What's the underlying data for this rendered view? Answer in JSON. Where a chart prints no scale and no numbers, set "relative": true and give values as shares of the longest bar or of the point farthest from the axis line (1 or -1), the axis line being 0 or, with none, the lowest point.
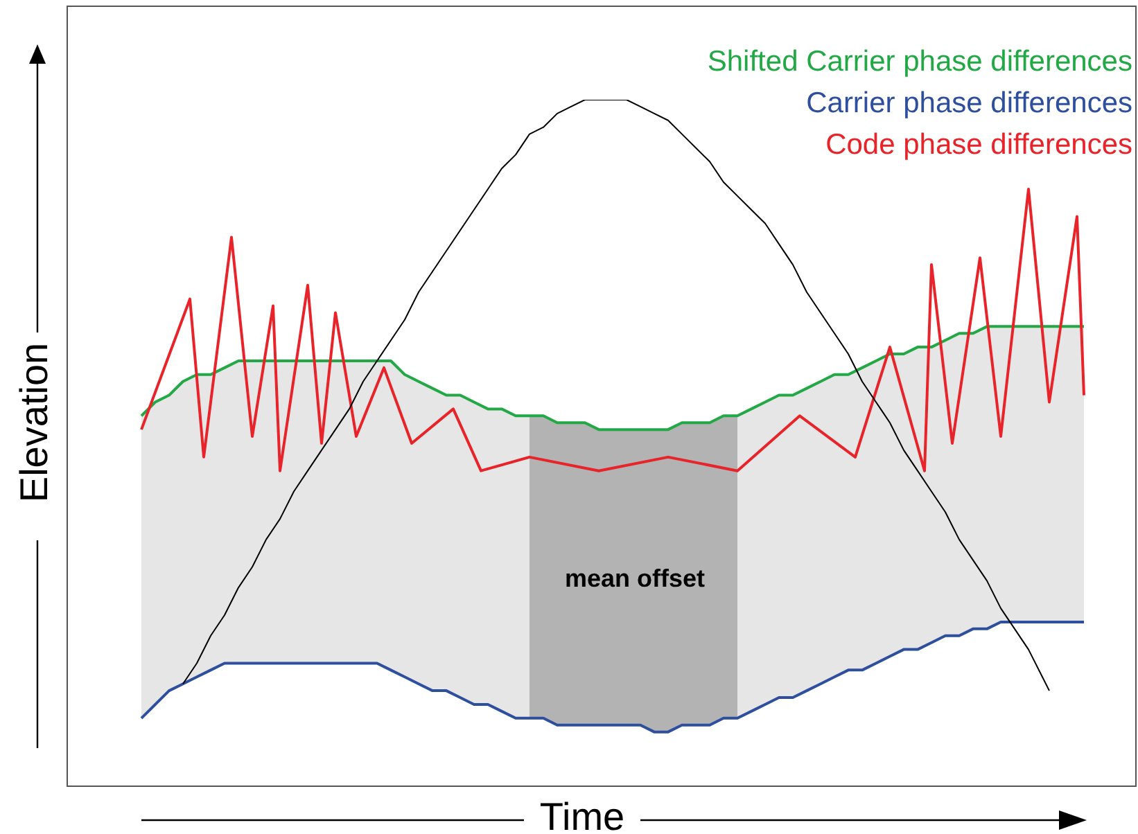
{
  "chart_data": {
    "type": "line",
    "relative": true,
    "xlabel": "Time",
    "ylabel": "Elevation",
    "legend": "top right",
    "marker": "none",
    "grid": false,
    "categories": [
      null,
      null,
      null,
      null,
      null,
      null,
      null,
      null,
      null,
      null,
      null,
      null,
      null,
      null,
      null,
      null,
      null,
      null,
      null,
      null,
      null,
      null,
      null,
      null,
      null,
      null,
      null,
      null,
      null,
      null,
      null,
      null,
      null,
      null,
      null,
      null,
      null,
      null,
      null,
      null,
      null,
      null,
      null,
      null,
      null,
      null,
      null,
      null,
      null,
      null,
      null,
      null,
      null,
      null,
      null,
      null,
      null,
      null,
      null,
      null,
      null,
      null,
      null,
      null,
      null,
      null,
      null,
      null,
      null,
      null,
      null,
      null,
      null,
      null,
      null,
      null,
      null,
      null,
      null,
      null,
      null,
      null,
      null,
      null,
      null,
      null,
      null,
      null,
      null,
      null,
      null,
      null,
      null,
      null,
      null,
      null,
      null,
      null,
      null,
      null,
      null,
      null,
      null,
      null,
      null,
      null,
      null,
      null,
      null,
      null,
      null,
      null,
      null,
      null,
      null,
      null,
      null,
      null,
      null,
      null,
      null,
      null,
      null,
      null,
      null,
      null,
      null,
      null,
      null,
      null,
      null,
      null,
      null,
      null,
      null,
      null,
      null
    ],
    "series": [
      {
        "name": "Shifted Carrier phase differences",
        "color": "#22a845",
        "values": [
          0.54,
          null,
          0.56,
          null,
          0.57,
          null,
          0.59,
          null,
          0.6,
          null,
          0.6,
          null,
          0.61,
          null,
          0.62,
          null,
          0.62,
          null,
          0.62,
          null,
          0.62,
          null,
          0.62,
          null,
          0.62,
          null,
          0.62,
          null,
          0.62,
          null,
          0.62,
          null,
          0.62,
          null,
          0.62,
          null,
          0.62,
          null,
          0.6,
          null,
          0.59,
          null,
          0.58,
          null,
          0.57,
          null,
          0.57,
          null,
          0.56,
          null,
          0.55,
          null,
          0.55,
          null,
          0.54,
          null,
          0.54,
          null,
          0.54,
          null,
          0.53,
          null,
          0.53,
          null,
          0.53,
          null,
          0.52,
          null,
          0.52,
          null,
          0.52,
          null,
          0.52,
          null,
          0.52,
          null,
          0.52,
          null,
          0.53,
          null,
          0.53,
          null,
          0.53,
          null,
          0.54,
          null,
          0.54,
          null,
          0.55,
          null,
          0.56,
          null,
          0.57,
          null,
          0.57,
          null,
          0.58,
          null,
          0.59,
          null,
          0.6,
          null,
          0.6,
          null,
          0.61,
          null,
          0.62,
          null,
          0.63,
          null,
          0.63,
          null,
          0.64,
          null,
          0.64,
          null,
          0.65,
          null,
          0.66,
          null,
          0.66,
          null,
          0.67,
          null,
          0.67,
          null,
          0.67,
          null,
          0.67,
          null,
          0.67,
          null,
          0.67,
          null,
          0.67,
          null,
          0.67
        ]
      },
      {
        "name": "Carrier phase differences",
        "color": "#2e4e9e",
        "values": [
          0.1,
          null,
          0.12,
          null,
          0.14,
          null,
          0.15,
          null,
          0.16,
          null,
          0.17,
          null,
          0.18,
          null,
          0.18,
          null,
          0.18,
          null,
          0.18,
          null,
          0.18,
          null,
          0.18,
          null,
          0.18,
          null,
          0.18,
          null,
          0.18,
          null,
          0.18,
          null,
          0.18,
          null,
          0.18,
          null,
          0.17,
          null,
          0.16,
          null,
          0.15,
          null,
          0.14,
          null,
          0.14,
          null,
          0.13,
          null,
          0.12,
          null,
          0.12,
          null,
          0.11,
          null,
          0.1,
          null,
          0.1,
          null,
          0.1,
          null,
          0.09,
          null,
          0.09,
          null,
          0.09,
          null,
          0.09,
          null,
          0.09,
          null,
          0.09,
          null,
          0.09,
          null,
          0.08,
          null,
          0.08,
          null,
          0.09,
          null,
          0.09,
          null,
          0.09,
          null,
          0.1,
          null,
          0.1,
          null,
          0.11,
          null,
          0.12,
          null,
          0.13,
          null,
          0.13,
          null,
          0.14,
          null,
          0.15,
          null,
          0.16,
          null,
          0.17,
          null,
          0.17,
          null,
          0.18,
          null,
          0.19,
          null,
          0.2,
          null,
          0.2,
          null,
          0.21,
          null,
          0.22,
          null,
          0.22,
          null,
          0.23,
          null,
          0.23,
          null,
          0.24,
          null,
          0.24,
          null,
          0.24,
          null,
          0.24,
          null,
          0.24,
          null,
          0.24,
          null,
          0.24
        ]
      },
      {
        "name": "Code phase differences",
        "color": "#e8232a",
        "values": [
          0.52,
          null,
          null,
          null,
          null,
          null,
          null,
          0.71,
          null,
          0.48,
          null,
          null,
          null,
          0.8,
          null,
          null,
          0.51,
          null,
          null,
          0.7,
          0.46,
          null,
          null,
          null,
          0.73,
          null,
          0.5,
          null,
          0.69,
          null,
          null,
          0.51,
          null,
          null,
          null,
          0.61,
          null,
          null,
          null,
          0.5,
          null,
          null,
          null,
          null,
          null,
          0.55,
          null,
          null,
          null,
          0.46,
          null,
          null,
          null,
          null,
          null,
          null,
          0.48,
          null,
          null,
          null,
          null,
          null,
          null,
          null,
          null,
          null,
          0.46,
          null,
          null,
          null,
          null,
          null,
          null,
          null,
          null,
          null,
          0.48,
          null,
          null,
          null,
          null,
          null,
          null,
          null,
          null,
          null,
          0.46,
          null,
          null,
          null,
          null,
          null,
          null,
          null,
          null,
          0.54,
          null,
          null,
          null,
          null,
          null,
          null,
          null,
          0.48,
          null,
          null,
          null,
          null,
          0.64,
          null,
          null,
          null,
          null,
          0.46,
          0.76,
          null,
          null,
          0.5,
          null,
          null,
          null,
          0.77,
          null,
          null,
          0.51,
          null,
          null,
          null,
          0.87,
          null,
          null,
          0.56,
          null,
          null,
          null,
          0.83,
          0.57
        ]
      },
      {
        "color": "#000000",
        "values": [
          null,
          null,
          null,
          null,
          null,
          null,
          0.15,
          null,
          0.18,
          null,
          0.22,
          null,
          0.25,
          null,
          0.29,
          null,
          0.32,
          null,
          0.36,
          null,
          0.39,
          null,
          0.43,
          null,
          0.46,
          null,
          0.49,
          null,
          0.52,
          null,
          0.55,
          null,
          0.59,
          null,
          0.62,
          null,
          0.65,
          null,
          0.68,
          null,
          0.72,
          null,
          0.75,
          null,
          0.78,
          null,
          0.81,
          null,
          0.84,
          null,
          0.87,
          null,
          0.9,
          null,
          0.92,
          null,
          0.95,
          null,
          0.96,
          null,
          0.98,
          null,
          0.99,
          null,
          1,
          null,
          1,
          null,
          1,
          null,
          1,
          null,
          0.99,
          null,
          0.98,
          null,
          0.97,
          null,
          0.95,
          null,
          0.93,
          null,
          0.91,
          null,
          0.88,
          null,
          0.86,
          null,
          0.84,
          null,
          0.82,
          null,
          0.79,
          null,
          0.76,
          null,
          0.72,
          null,
          0.69,
          null,
          0.66,
          null,
          0.63,
          null,
          0.59,
          null,
          0.56,
          null,
          0.53,
          null,
          0.49,
          null,
          0.46,
          null,
          0.43,
          null,
          0.4,
          null,
          0.36,
          null,
          0.33,
          null,
          0.3,
          null,
          0.26,
          null,
          0.23,
          null,
          0.2,
          null,
          0.16,
          0.14,
          null,
          null,
          null,
          null,
          null
        ]
      }
    ],
    "annotations": [
      "mean offset"
    ]
  }
}
